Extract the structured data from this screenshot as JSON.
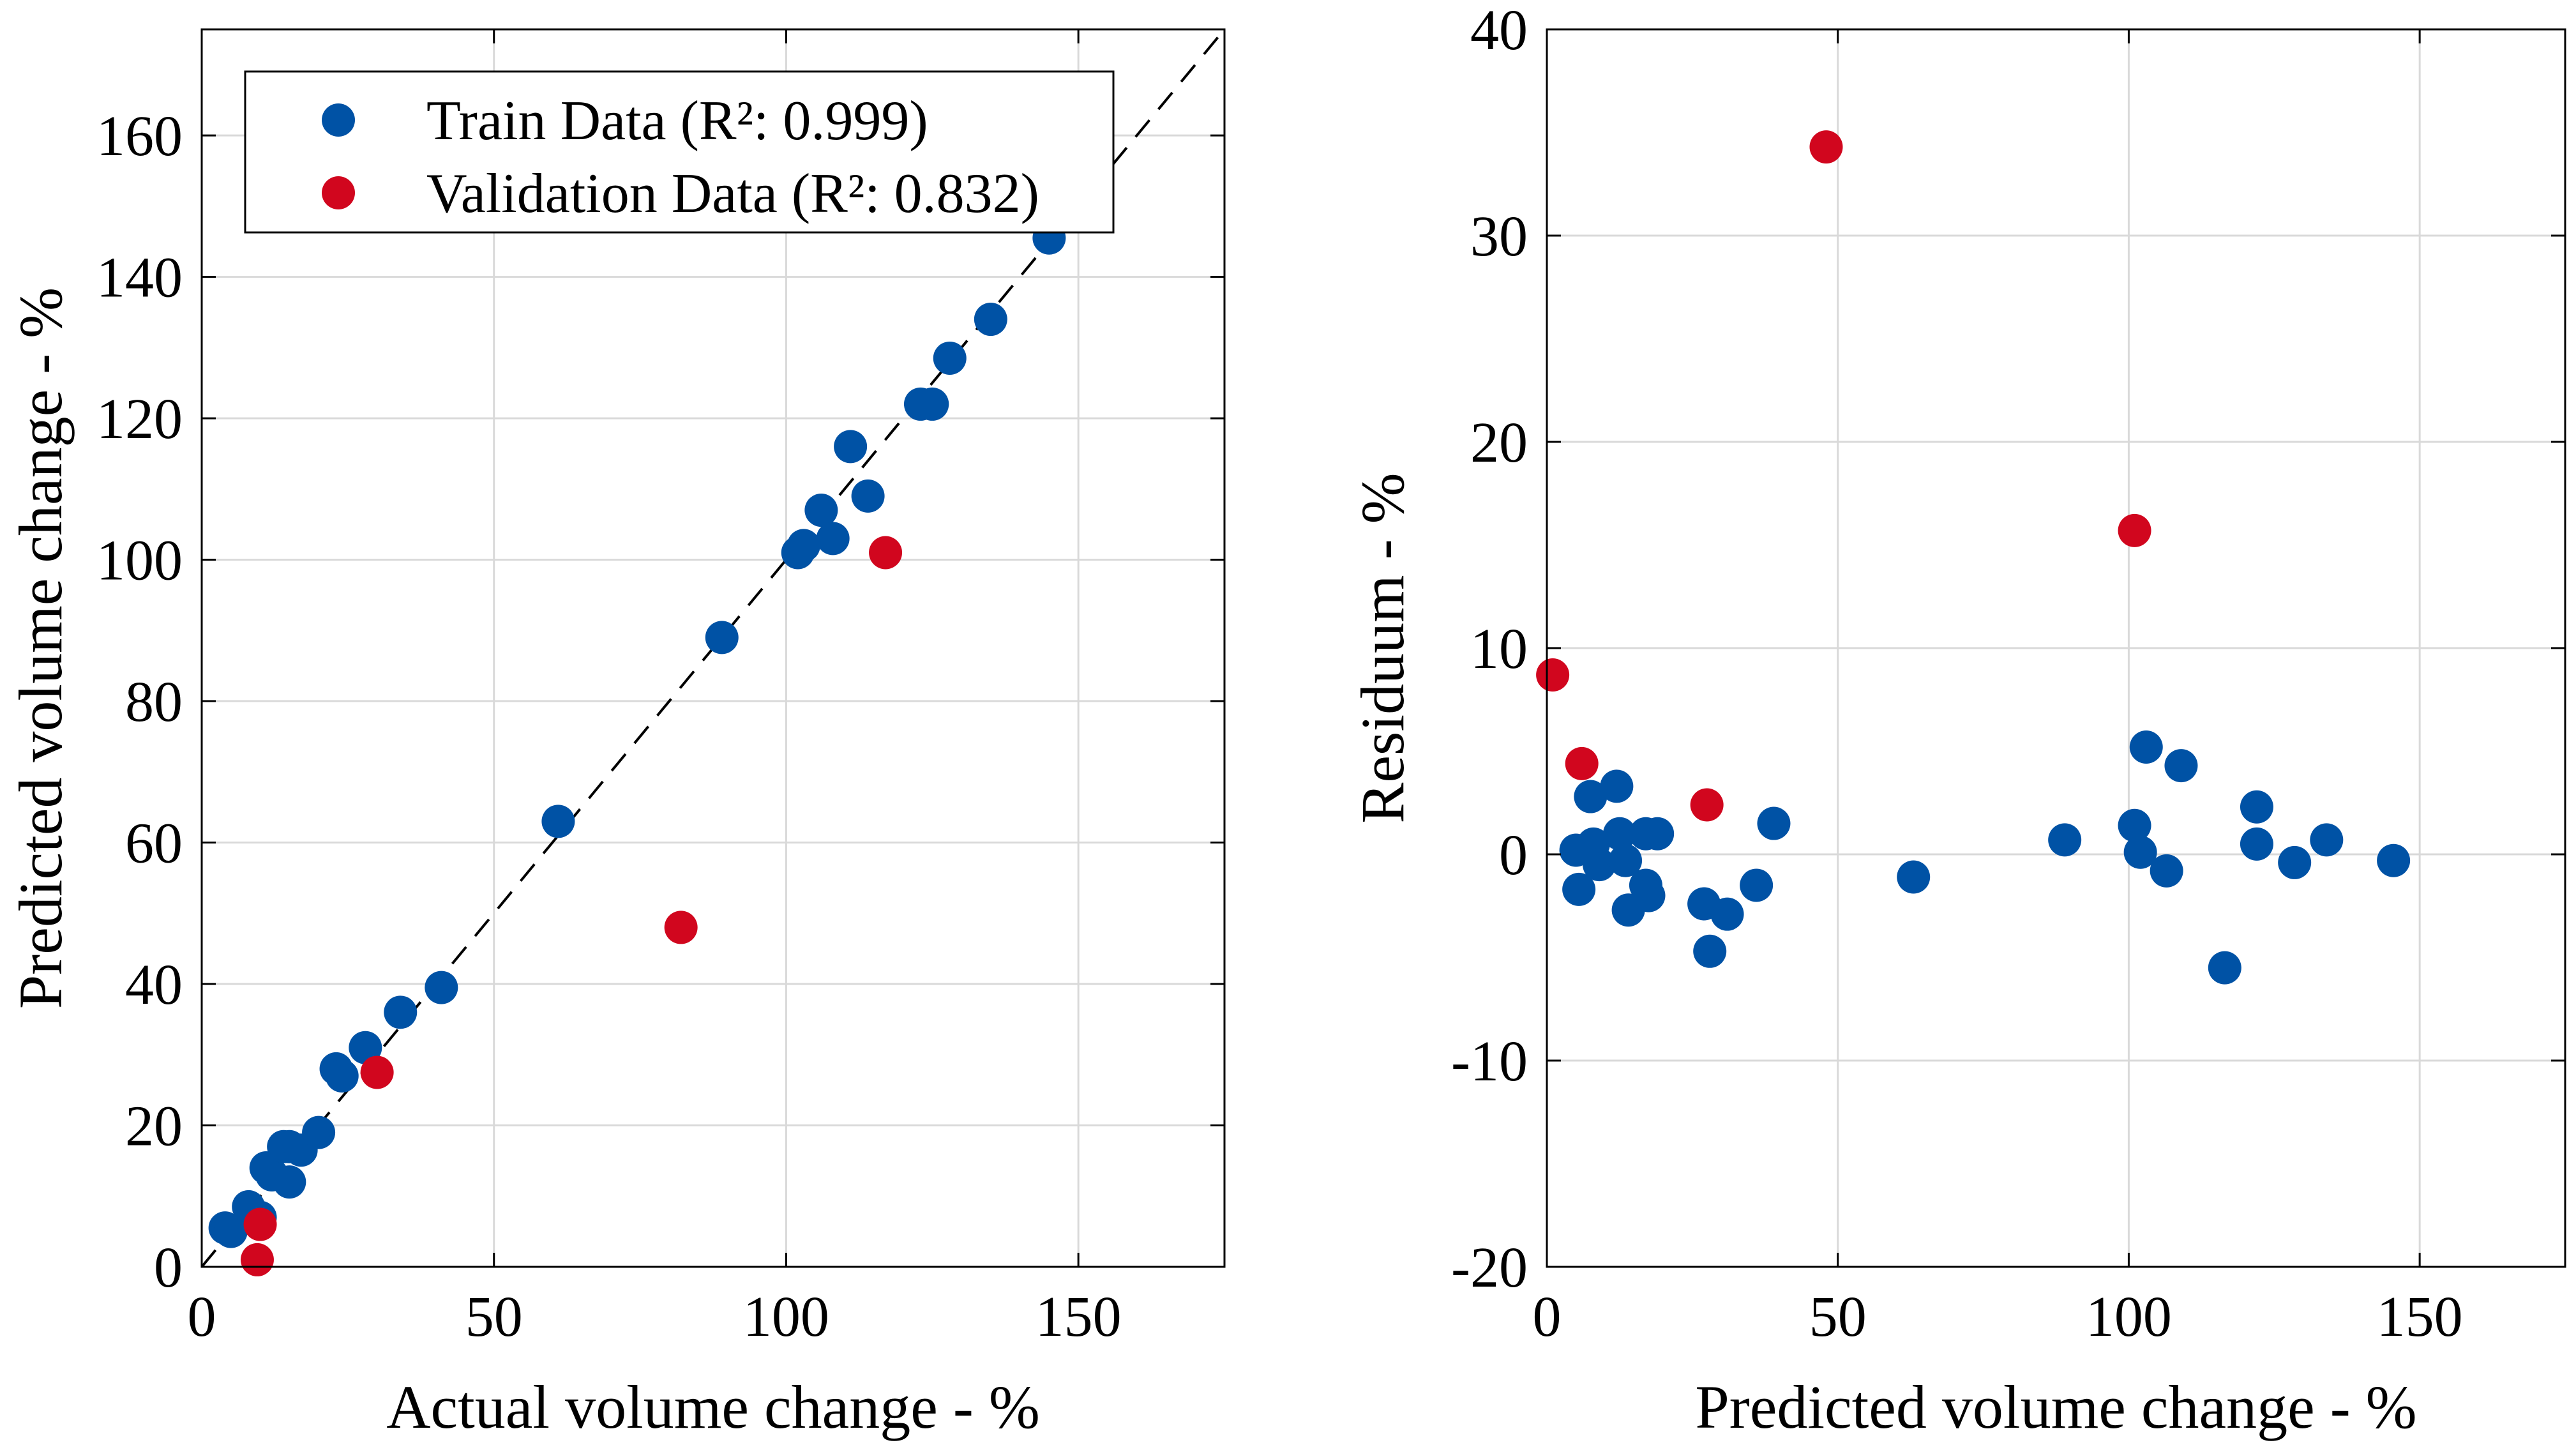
{
  "colors": {
    "train": "#0052a5",
    "validation": "#d1061e",
    "grid": "#d9d9d9",
    "axis": "#000000"
  },
  "chart_data": [
    {
      "type": "scatter",
      "title": "",
      "xlabel": "Actual volume change - %",
      "ylabel": "Predicted volume change - %",
      "xlim": [
        0,
        175
      ],
      "ylim": [
        0,
        175
      ],
      "xticks": [
        0,
        50,
        100,
        150
      ],
      "yticks": [
        0,
        20,
        40,
        60,
        80,
        100,
        120,
        140,
        160
      ],
      "grid": true,
      "identity_line": true,
      "legend": {
        "placement": "top-left"
      },
      "series": [
        {
          "name": "Train Data (R²: 0.999)",
          "color": "train",
          "x": [
            4,
            5,
            8,
            10,
            11,
            12,
            14,
            15,
            15,
            17,
            20,
            23,
            24,
            28,
            34,
            41,
            61,
            89,
            102,
            103,
            106,
            108,
            111,
            114,
            123,
            125,
            128,
            135,
            145
          ],
          "y": [
            5.5,
            5,
            8.5,
            7,
            14,
            13,
            17,
            12,
            17,
            16.5,
            19,
            28,
            27,
            31,
            36,
            39.5,
            63,
            89,
            101,
            102,
            107,
            103,
            116,
            109,
            122,
            122,
            128.5,
            134,
            145.5
          ]
        },
        {
          "name": "Validation Data (R²: 0.832)",
          "color": "validation",
          "x": [
            9.5,
            10,
            30,
            82,
            117
          ],
          "y": [
            1,
            6,
            27.5,
            48,
            101
          ]
        }
      ]
    },
    {
      "type": "scatter",
      "title": "",
      "xlabel": "Predicted volume change - %",
      "ylabel": "Residuum - %",
      "xlim": [
        0,
        175
      ],
      "ylim": [
        -20,
        40
      ],
      "xticks": [
        0,
        50,
        100,
        150
      ],
      "yticks": [
        -20,
        -10,
        0,
        10,
        20,
        30,
        40
      ],
      "grid": true,
      "series": [
        {
          "name": "Train Data",
          "color": "train",
          "x": [
            5,
            5.5,
            7.5,
            8,
            9,
            12,
            12.5,
            13.5,
            14,
            17,
            17,
            17.5,
            19,
            27,
            28,
            31,
            36,
            39,
            63,
            89,
            101,
            102,
            103,
            106.5,
            109,
            116.5,
            122,
            122,
            128.5,
            134,
            145.5
          ],
          "y": [
            0.2,
            -1.7,
            2.8,
            0.5,
            -0.5,
            3.3,
            1.0,
            -0.3,
            -2.7,
            1.0,
            -1.5,
            -2.0,
            1.0,
            -2.4,
            -4.7,
            -2.9,
            -1.5,
            1.5,
            -1.1,
            0.7,
            1.4,
            0.1,
            5.2,
            -0.8,
            4.3,
            -5.5,
            2.3,
            0.5,
            -0.4,
            0.7,
            -0.3
          ]
        },
        {
          "name": "Validation Data",
          "color": "validation",
          "x": [
            1,
            6,
            27.5,
            48,
            101
          ],
          "y": [
            8.7,
            4.4,
            2.4,
            34.3,
            15.7
          ]
        }
      ]
    }
  ]
}
